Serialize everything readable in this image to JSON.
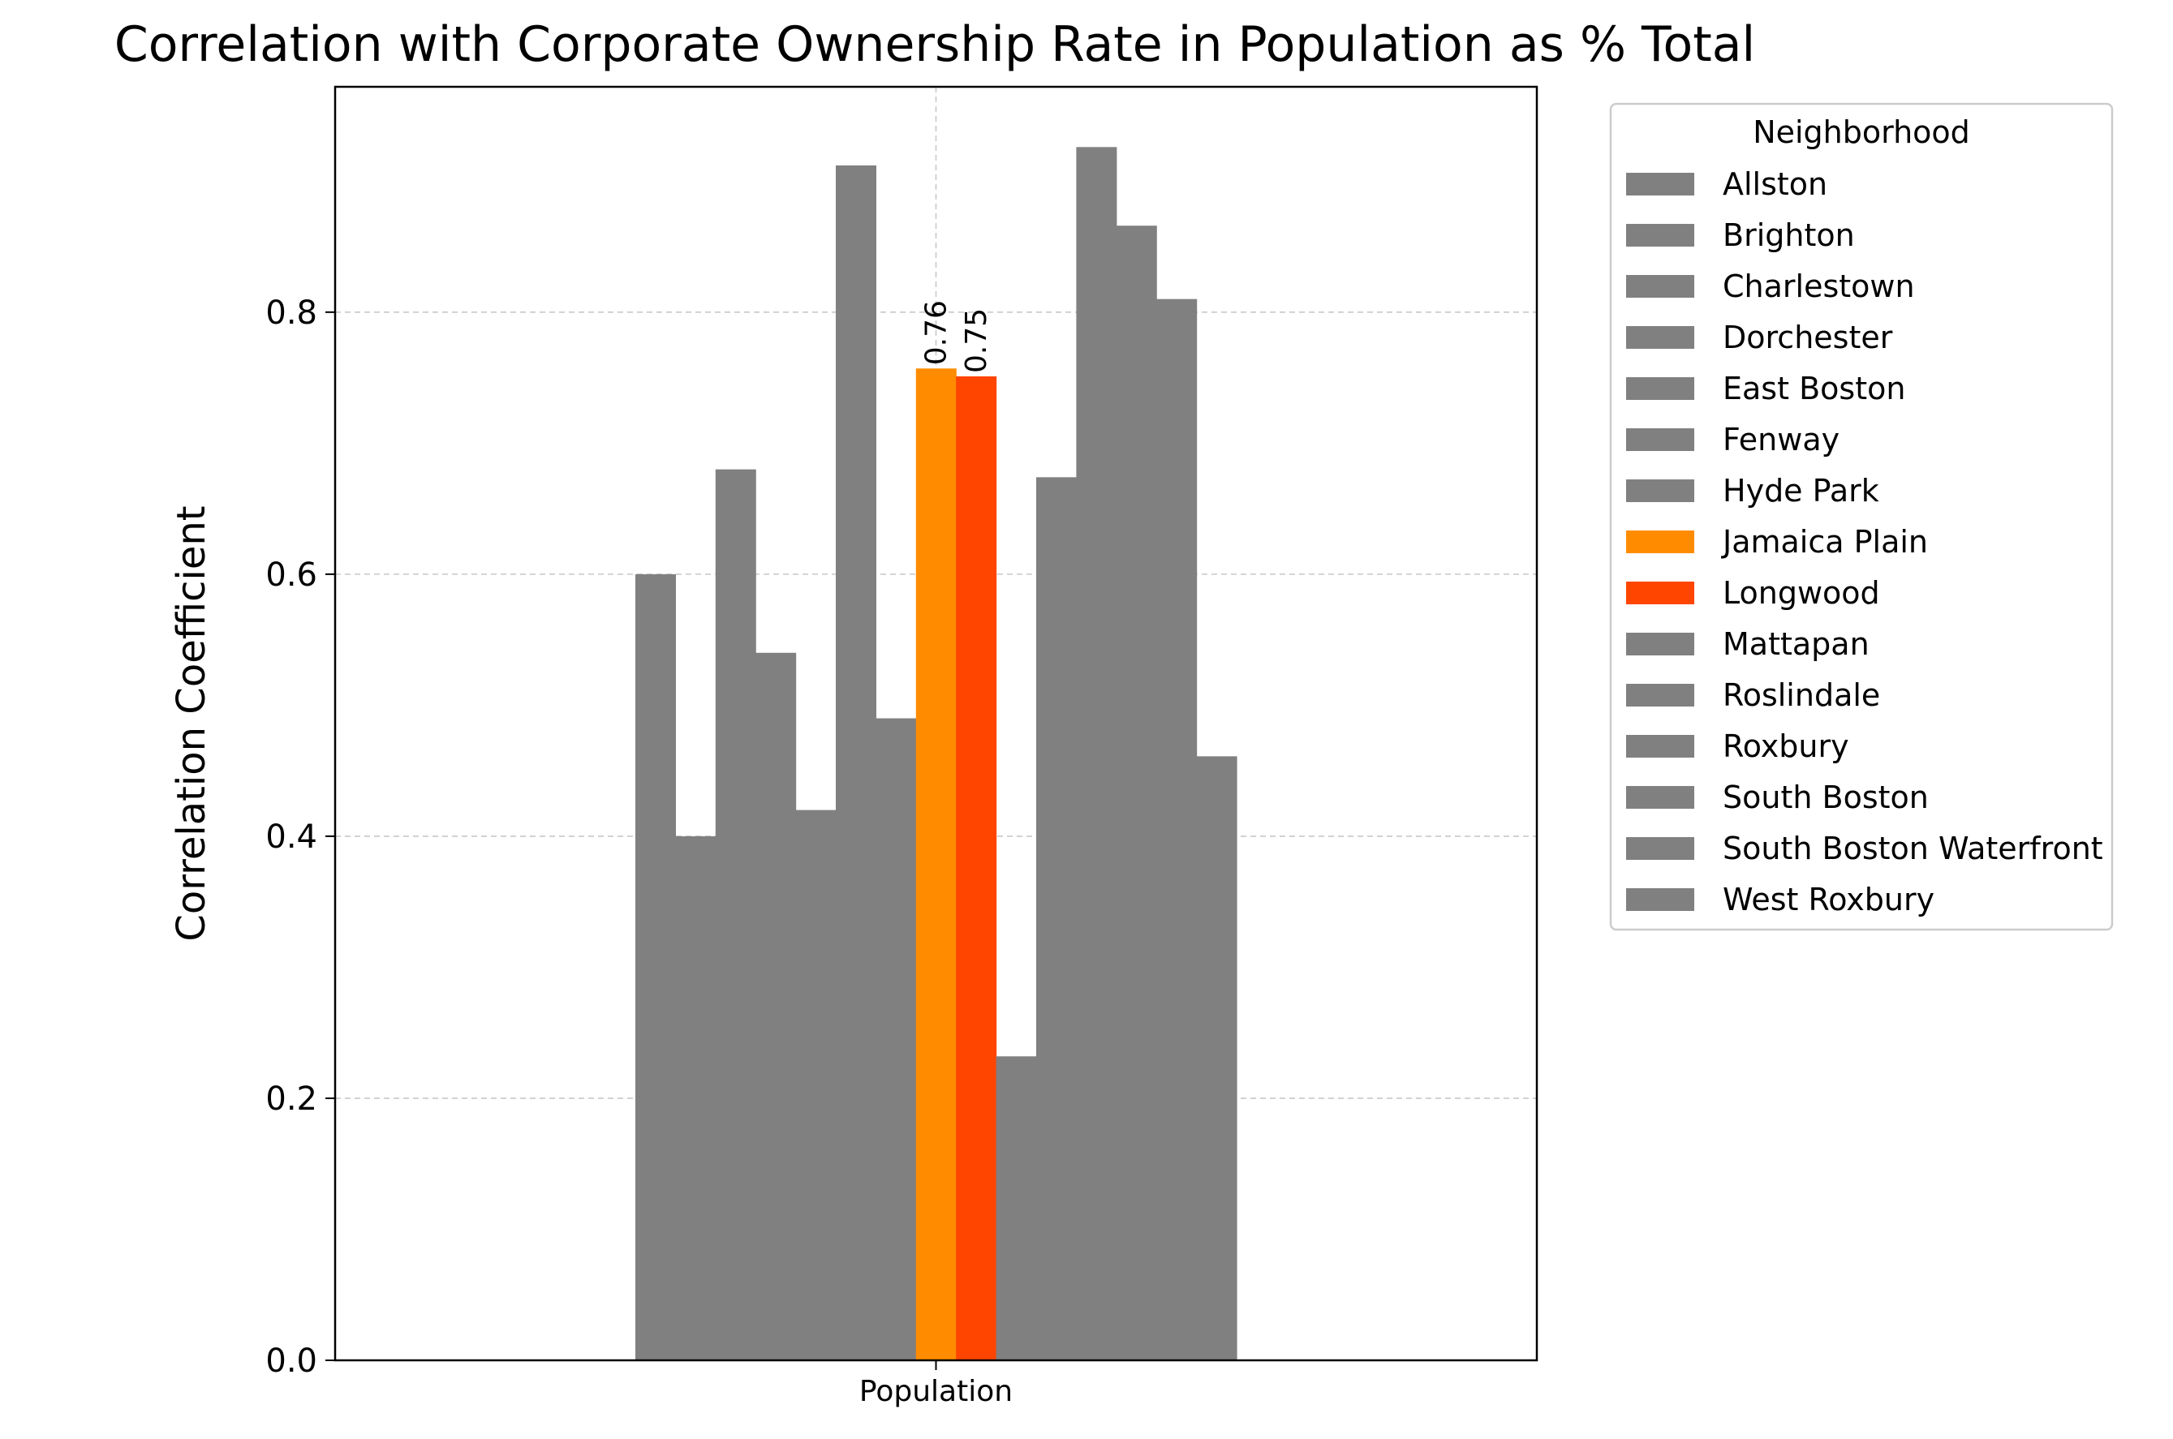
{
  "chart_data": {
    "type": "bar",
    "title": "Correlation with Corporate Ownership Rate in Population as % Total",
    "ylabel": "Correlation Coefficient",
    "xlabel": "",
    "categories": [
      "Population"
    ],
    "ylim": [
      0,
      0.972
    ],
    "yticks": [
      "0.0",
      "0.2",
      "0.4",
      "0.6",
      "0.8"
    ],
    "grid": true,
    "legend": {
      "title": "Neighborhood",
      "placement": "outside-right"
    },
    "series": [
      {
        "name": "Allston",
        "values": [
          0.6
        ],
        "color": "#808080",
        "label": ""
      },
      {
        "name": "Brighton",
        "values": [
          0.4
        ],
        "color": "#808080",
        "label": ""
      },
      {
        "name": "Charlestown",
        "values": [
          0.68
        ],
        "color": "#808080",
        "label": ""
      },
      {
        "name": "Dorchester",
        "values": [
          0.54
        ],
        "color": "#808080",
        "label": ""
      },
      {
        "name": "East Boston",
        "values": [
          0.42
        ],
        "color": "#808080",
        "label": ""
      },
      {
        "name": "Fenway",
        "values": [
          0.912
        ],
        "color": "#808080",
        "label": ""
      },
      {
        "name": "Hyde Park",
        "values": [
          0.49
        ],
        "color": "#808080",
        "label": ""
      },
      {
        "name": "Jamaica Plain",
        "values": [
          0.757
        ],
        "color": "#ff8c00",
        "label": "0.76"
      },
      {
        "name": "Longwood",
        "values": [
          0.751
        ],
        "color": "#ff4500",
        "label": "0.75"
      },
      {
        "name": "Mattapan",
        "values": [
          0.232
        ],
        "color": "#808080",
        "label": ""
      },
      {
        "name": "Roslindale",
        "values": [
          0.674
        ],
        "color": "#808080",
        "label": ""
      },
      {
        "name": "Roxbury",
        "values": [
          0.926
        ],
        "color": "#808080",
        "label": ""
      },
      {
        "name": "South Boston",
        "values": [
          0.866
        ],
        "color": "#808080",
        "label": ""
      },
      {
        "name": "South Boston Waterfront",
        "values": [
          0.81
        ],
        "color": "#808080",
        "label": ""
      },
      {
        "name": "West Roxbury",
        "values": [
          0.461
        ],
        "color": "#808080",
        "label": ""
      }
    ]
  }
}
